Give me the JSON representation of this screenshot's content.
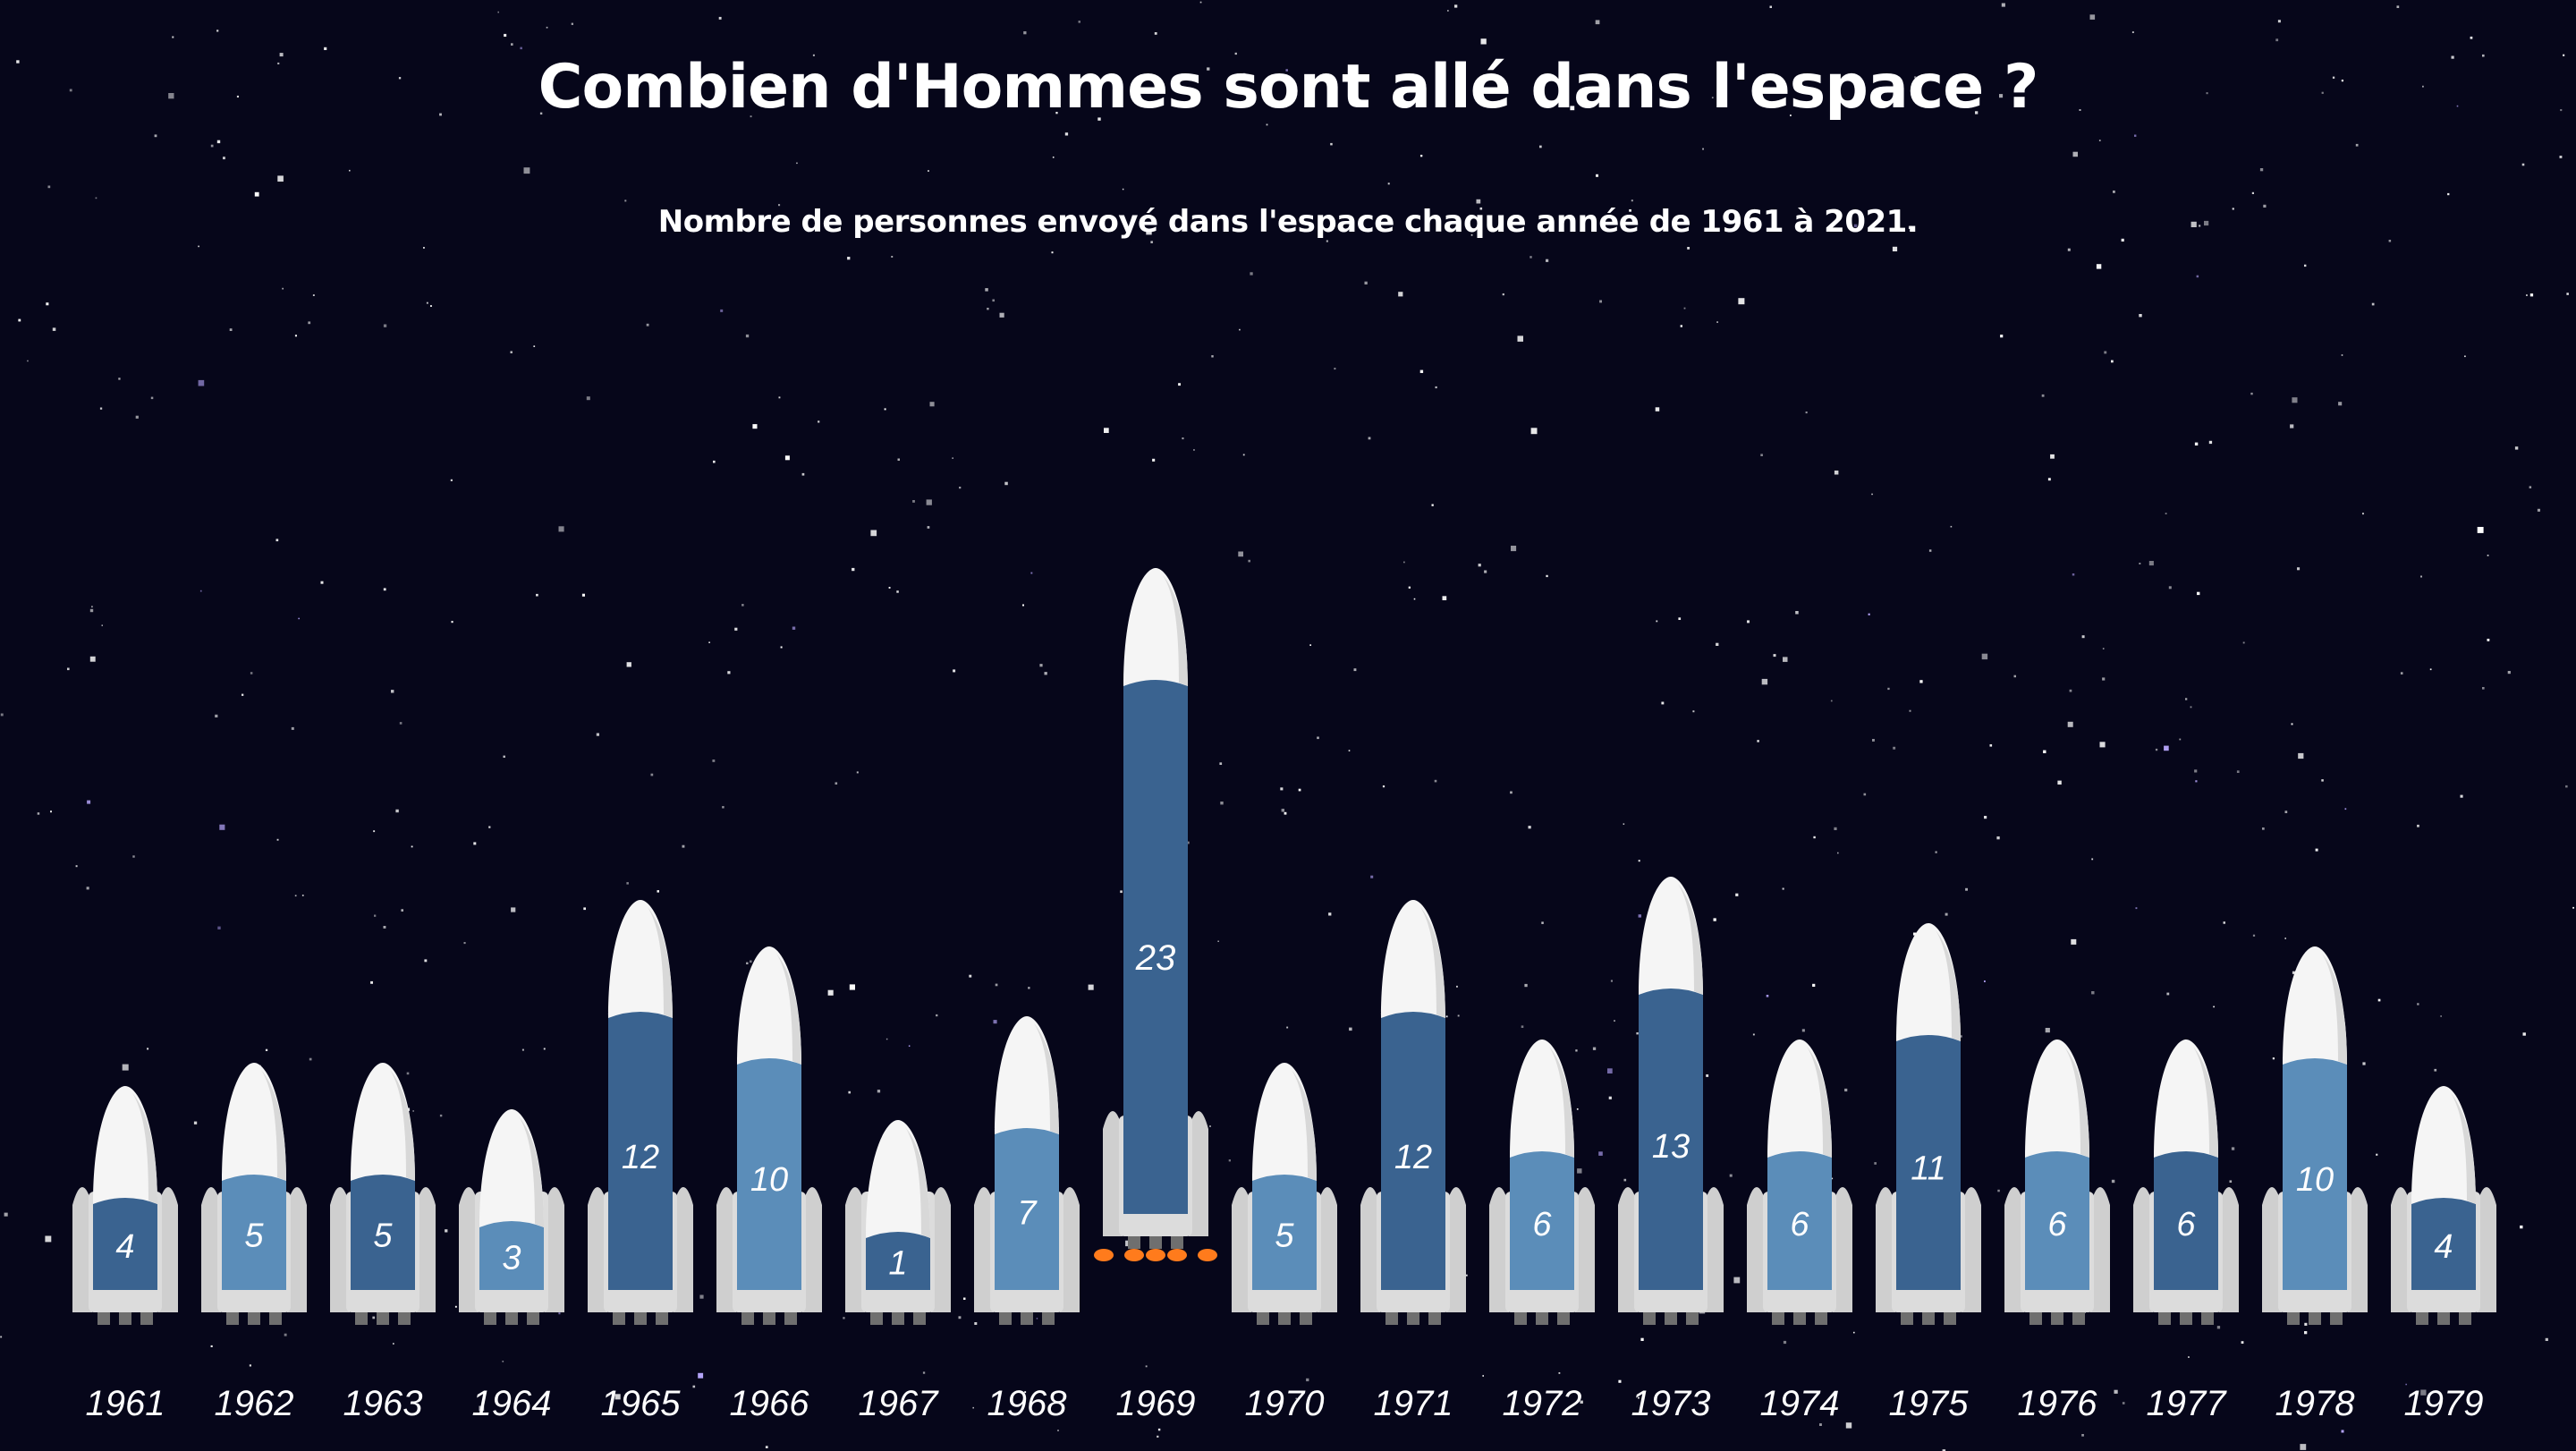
{
  "header": {
    "title": "Combien d'Hommes sont allé dans l'espace ?",
    "subtitle": "Nombre de personnes envoyé dans l'espace chaque année de 1961 à 2021."
  },
  "colors": {
    "background": "#06061a",
    "rocket_dark": "#3a6390",
    "rocket_light": "#5b8db9",
    "nose": "#f5f5f5",
    "booster": "#cfcfcf",
    "flame": "#ff7b1c"
  },
  "icons": {
    "rocket": "rocket-icon"
  },
  "chart_data": {
    "type": "bar",
    "title": "Combien d'Hommes sont allé dans l'espace ?",
    "subtitle": "Nombre de personnes envoyé dans l'espace chaque année de 1961 à 2021.",
    "categories": [
      "1961",
      "1962",
      "1963",
      "1964",
      "1965",
      "1966",
      "1967",
      "1968",
      "1969",
      "1970",
      "1971",
      "1972",
      "1973",
      "1974",
      "1975",
      "1976",
      "1977",
      "1978",
      "1979"
    ],
    "values": [
      4,
      5,
      5,
      3,
      12,
      10,
      1,
      7,
      23,
      5,
      12,
      6,
      13,
      6,
      11,
      6,
      6,
      10,
      4
    ],
    "highlighted": "1969",
    "grid": false,
    "legend": "none"
  }
}
